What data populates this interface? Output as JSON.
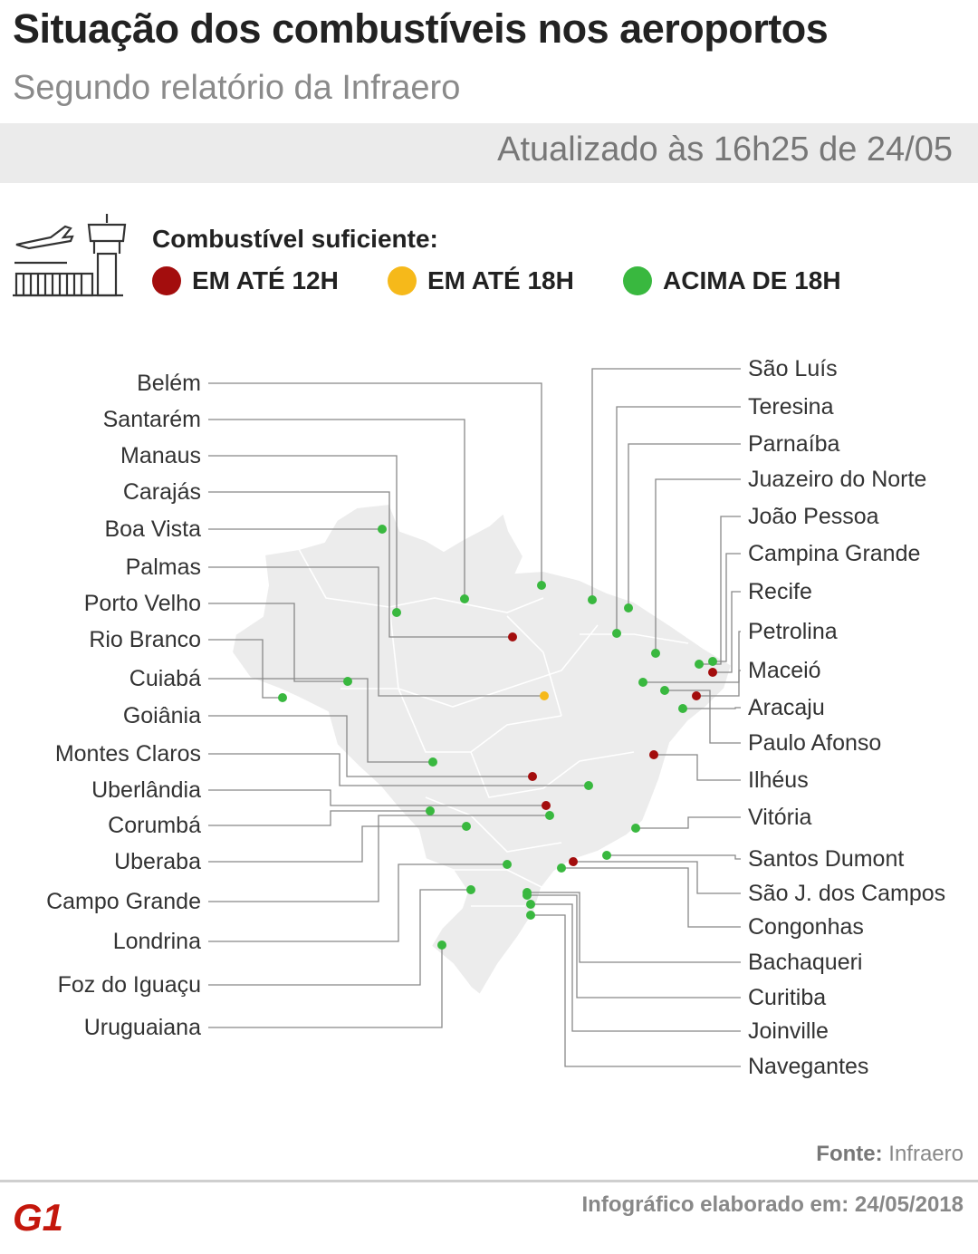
{
  "header": {
    "title": "Situação dos combustíveis nos aeroportos",
    "subtitle": "Segundo relatório da Infraero",
    "updated": "Atualizado às 16h25 de 24/05"
  },
  "legend": {
    "title": "Combustível suficiente:",
    "items": [
      {
        "label": "EM ATÉ 12H",
        "color": "#a30d0d"
      },
      {
        "label": "EM ATÉ 18H",
        "color": "#f6b91a"
      },
      {
        "label": "ACIMA DE 18H",
        "color": "#39b83f"
      }
    ]
  },
  "colors": {
    "map_fill": "#ececec",
    "map_border": "#ffffff",
    "leader_line": "#888888",
    "red": "#a30d0d",
    "yellow": "#f6b91a",
    "green": "#39b83f"
  },
  "airports_left": [
    {
      "name": "Belém",
      "status": "green"
    },
    {
      "name": "Santarém",
      "status": "green"
    },
    {
      "name": "Manaus",
      "status": "green"
    },
    {
      "name": "Carajás",
      "status": "red"
    },
    {
      "name": "Boa Vista",
      "status": "green"
    },
    {
      "name": "Palmas",
      "status": "yellow"
    },
    {
      "name": "Porto Velho",
      "status": "green"
    },
    {
      "name": "Rio Branco",
      "status": "green"
    },
    {
      "name": "Cuiabá",
      "status": "green"
    },
    {
      "name": "Goiânia",
      "status": "red"
    },
    {
      "name": "Montes Claros",
      "status": "green"
    },
    {
      "name": "Uberlândia",
      "status": "red"
    },
    {
      "name": "Corumbá",
      "status": "green"
    },
    {
      "name": "Uberaba",
      "status": "green"
    },
    {
      "name": "Campo Grande",
      "status": "green"
    },
    {
      "name": "Londrina",
      "status": "green"
    },
    {
      "name": "Foz do Iguaçu",
      "status": "green"
    },
    {
      "name": "Uruguaiana",
      "status": "green"
    }
  ],
  "airports_right": [
    {
      "name": "São Luís",
      "status": "green"
    },
    {
      "name": "Teresina",
      "status": "green"
    },
    {
      "name": "Parnaíba",
      "status": "green"
    },
    {
      "name": "Juazeiro do Norte",
      "status": "green"
    },
    {
      "name": "João Pessoa",
      "status": "green"
    },
    {
      "name": "Campina Grande",
      "status": "green"
    },
    {
      "name": "Recife",
      "status": "red"
    },
    {
      "name": "Petrolina",
      "status": "green"
    },
    {
      "name": "Maceió",
      "status": "red"
    },
    {
      "name": "Aracaju",
      "status": "green"
    },
    {
      "name": "Paulo Afonso",
      "status": "green"
    },
    {
      "name": "Ilhéus",
      "status": "red"
    },
    {
      "name": "Vitória",
      "status": "green"
    },
    {
      "name": "Santos Dumont",
      "status": "green"
    },
    {
      "name": "São J. dos Campos",
      "status": "red"
    },
    {
      "name": "Congonhas",
      "status": "green"
    },
    {
      "name": "Bachaqueri",
      "status": "green"
    },
    {
      "name": "Curitiba",
      "status": "green"
    },
    {
      "name": "Joinville",
      "status": "green"
    },
    {
      "name": "Navegantes",
      "status": "green"
    }
  ],
  "footer": {
    "source_label": "Fonte:",
    "source_value": "Infraero",
    "credit": "Infográfico elaborado em: 24/05/2018",
    "logo_text": "G1"
  }
}
